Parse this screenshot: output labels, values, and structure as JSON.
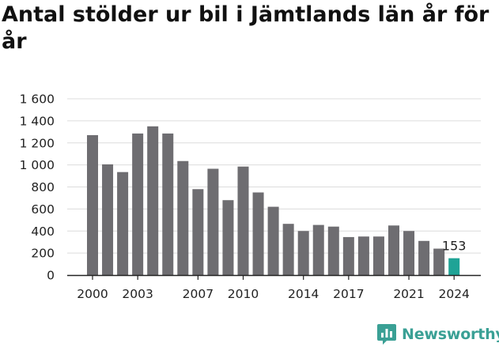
{
  "chart_data": {
    "type": "bar",
    "title": "Antal stölder ur bil i Jämtlands län år för år",
    "x": [
      2000,
      2001,
      2002,
      2003,
      2004,
      2005,
      2006,
      2007,
      2008,
      2009,
      2010,
      2011,
      2012,
      2013,
      2014,
      2015,
      2016,
      2017,
      2018,
      2019,
      2020,
      2021,
      2022,
      2023,
      2024
    ],
    "values": [
      1270,
      1005,
      935,
      1285,
      1350,
      1285,
      1035,
      780,
      965,
      680,
      985,
      750,
      620,
      465,
      400,
      455,
      440,
      345,
      350,
      350,
      450,
      400,
      310,
      240,
      153
    ],
    "xticks": [
      "2000",
      "2003",
      "2007",
      "2010",
      "2014",
      "2017",
      "2021",
      "2024"
    ],
    "xtick_values": [
      2000,
      2003,
      2007,
      2010,
      2014,
      2017,
      2021,
      2024
    ],
    "yticks": [
      "0",
      "200",
      "400",
      "600",
      "800",
      "1 000",
      "1 200",
      "1 400",
      "1 600"
    ],
    "ytick_values": [
      0,
      200,
      400,
      600,
      800,
      1000,
      1200,
      1400,
      1600
    ],
    "ylim": [
      0,
      1600
    ],
    "grid": true,
    "bar_color": "#6e6d71",
    "highlight_color": "#1fa396",
    "highlight_index": 24,
    "data_label": "153",
    "xlabel": "",
    "ylabel": ""
  },
  "logo": {
    "text": "Newsworthy",
    "icon": "newsworthy-logo-icon",
    "color": "#3aa095"
  }
}
